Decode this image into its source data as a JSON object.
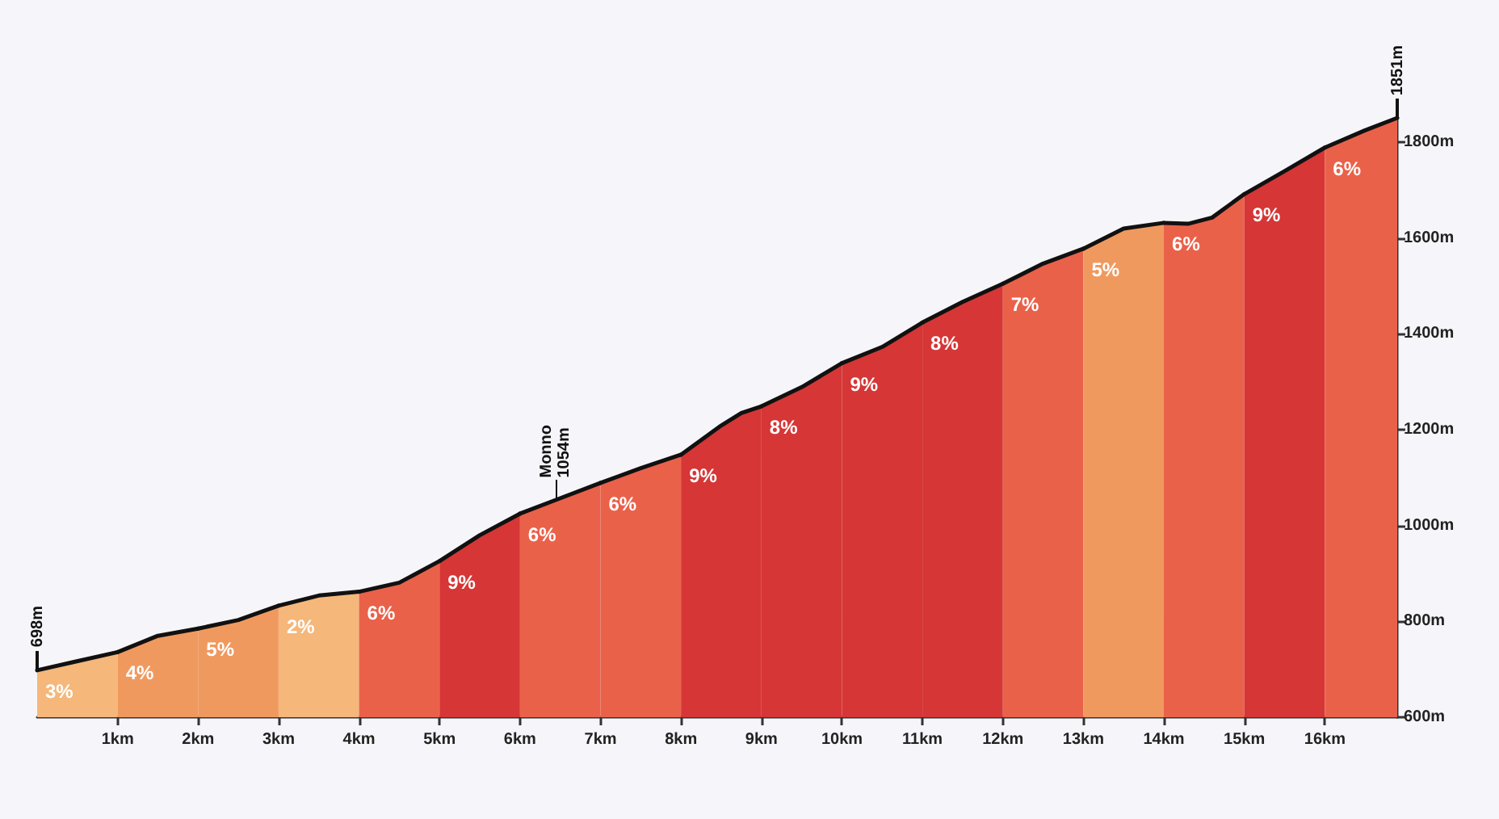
{
  "chart_data": {
    "type": "area",
    "xlim": [
      0,
      16.9
    ],
    "xticks": [
      {
        "value": 1,
        "label": "1km"
      },
      {
        "value": 2,
        "label": "2km"
      },
      {
        "value": 3,
        "label": "3km"
      },
      {
        "value": 4,
        "label": "4km"
      },
      {
        "value": 5,
        "label": "5km"
      },
      {
        "value": 6,
        "label": "6km"
      },
      {
        "value": 7,
        "label": "7km"
      },
      {
        "value": 8,
        "label": "8km"
      },
      {
        "value": 9,
        "label": "9km"
      },
      {
        "value": 10,
        "label": "10km"
      },
      {
        "value": 11,
        "label": "11km"
      },
      {
        "value": 12,
        "label": "12km"
      },
      {
        "value": 13,
        "label": "13km"
      },
      {
        "value": 14,
        "label": "14km"
      },
      {
        "value": 15,
        "label": "15km"
      },
      {
        "value": 16,
        "label": "16km"
      }
    ],
    "ylim": [
      600,
      1851
    ],
    "yticks": [
      {
        "value": 600,
        "label": "600m"
      },
      {
        "value": 800,
        "label": "800m"
      },
      {
        "value": 1000,
        "label": "1000m"
      },
      {
        "value": 1200,
        "label": "1200m"
      },
      {
        "value": 1400,
        "label": "1400m"
      },
      {
        "value": 1600,
        "label": "1600m"
      },
      {
        "value": 1800,
        "label": "1800m"
      }
    ],
    "series": [
      {
        "color": "#f5b77a",
        "x": [
          0,
          0.47,
          1
        ],
        "values": [
          698,
          716,
          736
        ]
      },
      {
        "color": "#f0995f",
        "x": [
          1,
          1.5,
          2
        ],
        "values": [
          736,
          770,
          785
        ]
      },
      {
        "color": "#f0995f",
        "x": [
          2,
          2.5,
          3
        ],
        "values": [
          785,
          803,
          833
        ]
      },
      {
        "color": "#f5b77a",
        "x": [
          3,
          3.5,
          4
        ],
        "values": [
          833,
          854,
          862
        ]
      },
      {
        "color": "#ea614a",
        "x": [
          4,
          4.5,
          5
        ],
        "values": [
          862,
          881,
          926
        ]
      },
      {
        "color": "#d63636",
        "x": [
          5,
          5.5,
          6
        ],
        "values": [
          926,
          980,
          1025
        ]
      },
      {
        "color": "#ea614a",
        "x": [
          6,
          6.45,
          7
        ],
        "values": [
          1025,
          1054,
          1089
        ]
      },
      {
        "color": "#ea614a",
        "x": [
          7,
          7.5,
          8
        ],
        "values": [
          1089,
          1120,
          1148
        ]
      },
      {
        "color": "#d63636",
        "x": [
          8,
          8.5,
          8.75,
          9
        ],
        "values": [
          1148,
          1209,
          1235,
          1249
        ]
      },
      {
        "color": "#d63636",
        "x": [
          9,
          9.5,
          10
        ],
        "values": [
          1249,
          1289,
          1339
        ]
      },
      {
        "color": "#d63636",
        "x": [
          10,
          10.5,
          11
        ],
        "values": [
          1339,
          1373,
          1424
        ]
      },
      {
        "color": "#d63636",
        "x": [
          11,
          11.5,
          12
        ],
        "values": [
          1424,
          1467,
          1505
        ]
      },
      {
        "color": "#ea614a",
        "x": [
          12,
          12.5,
          13
        ],
        "values": [
          1505,
          1547,
          1578
        ]
      },
      {
        "color": "#f0995f",
        "x": [
          13,
          13.5,
          14
        ],
        "values": [
          1578,
          1620,
          1632
        ]
      },
      {
        "color": "#ea614a",
        "x": [
          14,
          14.3,
          14.6,
          15
        ],
        "values": [
          1632,
          1630,
          1643,
          1692
        ]
      },
      {
        "color": "#d63636",
        "x": [
          15,
          15.5,
          16
        ],
        "values": [
          1692,
          1740,
          1789
        ]
      },
      {
        "color": "#ea614a",
        "x": [
          16,
          16.5,
          16.9
        ],
        "values": [
          1789,
          1825,
          1851
        ]
      }
    ],
    "annotations": [
      {
        "text": "698m",
        "x": 0,
        "y": 698
      },
      {
        "text": "Monno\n1054m",
        "x": 6.45,
        "y": 1054
      },
      {
        "text": "1851m",
        "x": 16.9,
        "y": 1851
      },
      "3%",
      "4%",
      "5%",
      "2%",
      "6%",
      "9%",
      "6%",
      "6%",
      "9%",
      "8%",
      "9%",
      "8%",
      "7%",
      "5%",
      "6%",
      "9%",
      "6%"
    ]
  }
}
